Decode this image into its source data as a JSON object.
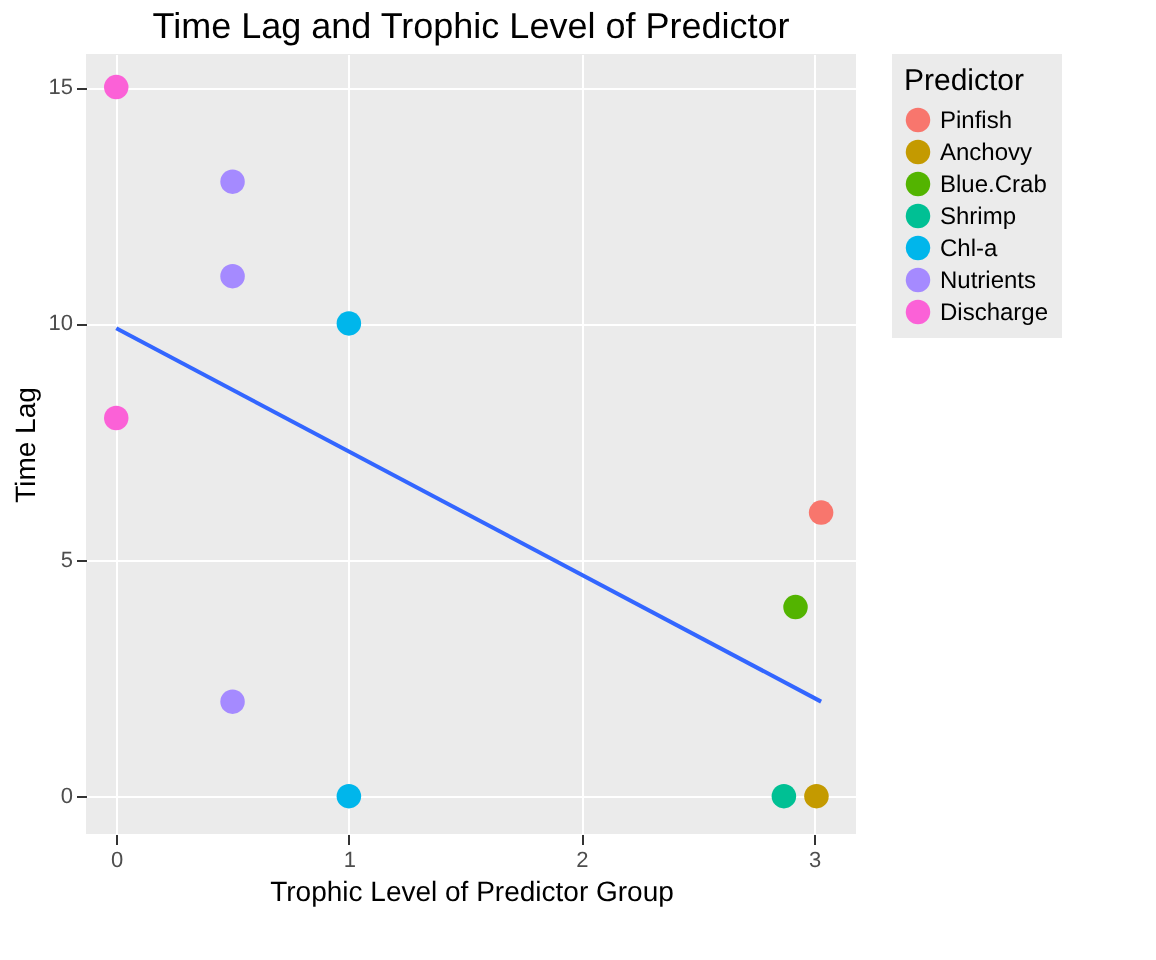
{
  "chart_data": {
    "type": "scatter",
    "title": "Time Lag and Trophic Level of Predictor",
    "xlabel": "Trophic Level of Predictor Group",
    "ylabel": "Time Lag",
    "legend_title": "Predictor",
    "series": [
      {
        "name": "Pinfish",
        "color": "#f8766d",
        "x": [
          3.03
        ],
        "values": [
          6
        ]
      },
      {
        "name": "Anchovy",
        "color": "#c49a00",
        "x": [
          3.01
        ],
        "values": [
          0
        ]
      },
      {
        "name": "Blue.Crab",
        "color": "#53b400",
        "x": [
          2.92
        ],
        "values": [
          4
        ]
      },
      {
        "name": "Shrimp",
        "color": "#00c094",
        "x": [
          2.87
        ],
        "values": [
          0
        ]
      },
      {
        "name": "Chl-a",
        "color": "#00b6eb",
        "x": [
          1,
          1
        ],
        "values": [
          10,
          0
        ]
      },
      {
        "name": "Nutrients",
        "color": "#a58aff",
        "x": [
          0.5,
          0.5,
          0.5
        ],
        "values": [
          13,
          11,
          2
        ]
      },
      {
        "name": "Discharge",
        "color": "#fb61d7",
        "x": [
          0,
          0
        ],
        "values": [
          15,
          8
        ]
      },
      {
        "type": "line",
        "marker": "none",
        "color": "#3366ff",
        "x": [
          0,
          3.03
        ],
        "values": [
          9.9,
          2.0
        ]
      }
    ],
    "xlim": [
      -0.13,
      3.18
    ],
    "ylim": [
      -0.8,
      15.7
    ],
    "xticks": [
      0,
      1,
      2,
      3
    ],
    "yticks": [
      0,
      5,
      10,
      15
    ],
    "grid": true,
    "legend": "right",
    "marker": "circle",
    "line_style": "solid"
  }
}
